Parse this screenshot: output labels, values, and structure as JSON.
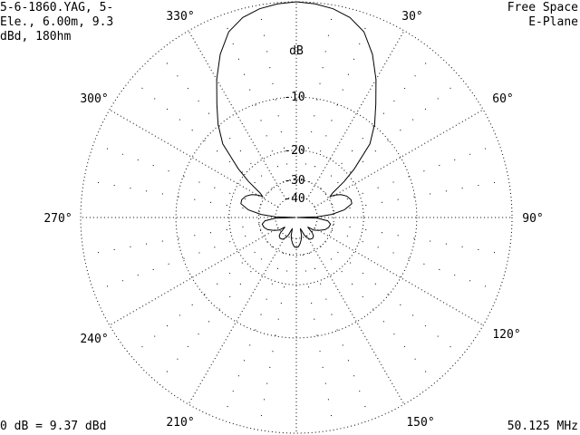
{
  "header": {
    "file_info_lines": [
      "5-6-1860.YAG, 5-",
      "Ele., 6.00m, 9.3",
      "dBd, 180hm"
    ],
    "environment": "Free Space",
    "plane": "E-Plane"
  },
  "footer": {
    "reference": "0 dB = 9.37 dBd",
    "frequency": "50.125 MHz"
  },
  "chart_data": {
    "type": "polar-line",
    "title": "",
    "radial_unit_label": "dB",
    "radial_scale": "ARRL log (0.89 per 2 dB)",
    "radial_range_db": [
      -100,
      0
    ],
    "radial_rings_db": [
      0,
      -10,
      -20,
      -30,
      -40
    ],
    "radial_tick_labels": [
      "-10",
      "-20",
      "-30",
      "-40"
    ],
    "angle_zero": "top",
    "angle_direction": "clockwise",
    "angle_tick_labels": [
      "30°",
      "60°",
      "90°",
      "120°",
      "150°",
      "210°",
      "240°",
      "270°",
      "300°",
      "330°"
    ],
    "grid": true,
    "symmetric_about_0_180": true,
    "series": [
      {
        "angles_deg": [
          0,
          5,
          10,
          15,
          20,
          25,
          30,
          35,
          40,
          45,
          50,
          53,
          56,
          58,
          60,
          63,
          67,
          72,
          76,
          81,
          85,
          88,
          90,
          92,
          96,
          101,
          107,
          113,
          120,
          126,
          130,
          134,
          137,
          142,
          148,
          153,
          156,
          160,
          164,
          168,
          172,
          176,
          180
        ],
        "gain_db": [
          0,
          -0.1,
          -0.3,
          -0.7,
          -1.5,
          -3.1,
          -5.2,
          -7.6,
          -9.8,
          -12.5,
          -18,
          -22,
          -27.4,
          -29,
          -27,
          -25,
          -23.5,
          -22.7,
          -22.8,
          -25.6,
          -31,
          -40,
          -100,
          -40,
          -33,
          -31.3,
          -31.8,
          -33.2,
          -36.5,
          -39.6,
          -46,
          -39,
          -36.9,
          -36,
          -36.5,
          -39,
          -42,
          -50,
          -42,
          -38.5,
          -36,
          -34.3,
          -33.8
        ]
      }
    ]
  },
  "colors": {
    "grid": "#000000",
    "trace": "#000000",
    "background": "#ffffff"
  }
}
